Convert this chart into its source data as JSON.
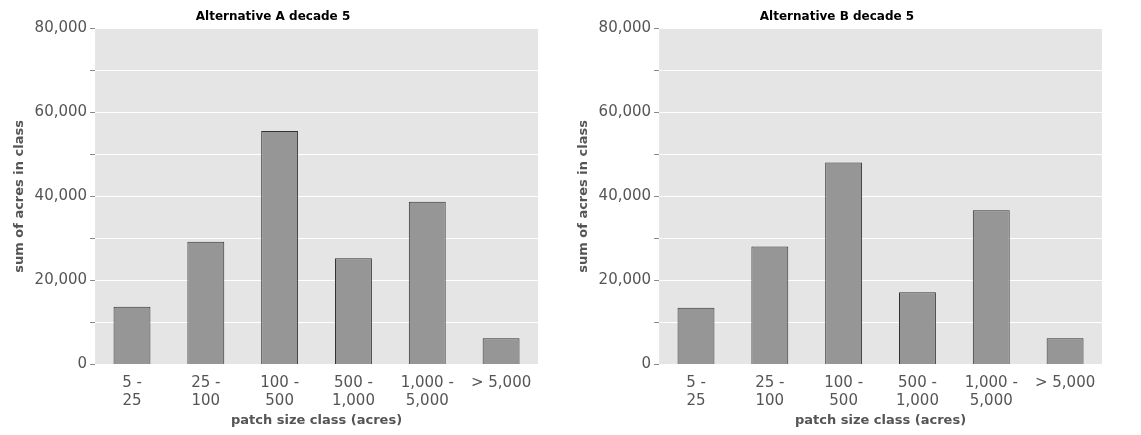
{
  "chart_data": [
    {
      "type": "bar",
      "title": "Alternative A decade 5",
      "xlabel": "patch size class (acres)",
      "ylabel": "sum of acres in class",
      "categories": [
        "5 -\n25",
        "25 -\n100",
        "100 -\n500",
        "500 -\n1,000",
        "1,000 -\n5,000",
        "> 5,000"
      ],
      "values": [
        13700,
        29200,
        55600,
        25300,
        38700,
        6200
      ],
      "color": "#969696",
      "ylim": [
        0,
        80000
      ],
      "yticks": [
        {
          "value": 0,
          "label": "0"
        },
        {
          "value": 10000,
          "label": null
        },
        {
          "value": 20000,
          "label": "20,000"
        },
        {
          "value": 30000,
          "label": null
        },
        {
          "value": 40000,
          "label": "40,000"
        },
        {
          "value": 50000,
          "label": null
        },
        {
          "value": 60000,
          "label": "60,000"
        },
        {
          "value": 70000,
          "label": null
        },
        {
          "value": 80000,
          "label": "80,000"
        }
      ],
      "grid": "y",
      "legend": false
    },
    {
      "type": "bar",
      "title": "Alternative B decade 5",
      "xlabel": "patch size class (acres)",
      "ylabel": "sum of acres in class",
      "categories": [
        "5 -\n25",
        "25 -\n100",
        "100 -\n500",
        "500 -\n1,000",
        "1,000 -\n5,000",
        "> 5,000"
      ],
      "values": [
        13500,
        28100,
        48100,
        17200,
        36700,
        6200
      ],
      "color": "#969696",
      "ylim": [
        0,
        80000
      ],
      "yticks": [
        {
          "value": 0,
          "label": "0"
        },
        {
          "value": 10000,
          "label": null
        },
        {
          "value": 20000,
          "label": "20,000"
        },
        {
          "value": 30000,
          "label": null
        },
        {
          "value": 40000,
          "label": "40,000"
        },
        {
          "value": 50000,
          "label": null
        },
        {
          "value": 60000,
          "label": "60,000"
        },
        {
          "value": 70000,
          "label": null
        },
        {
          "value": 80000,
          "label": "80,000"
        }
      ],
      "grid": "y",
      "legend": false
    }
  ]
}
